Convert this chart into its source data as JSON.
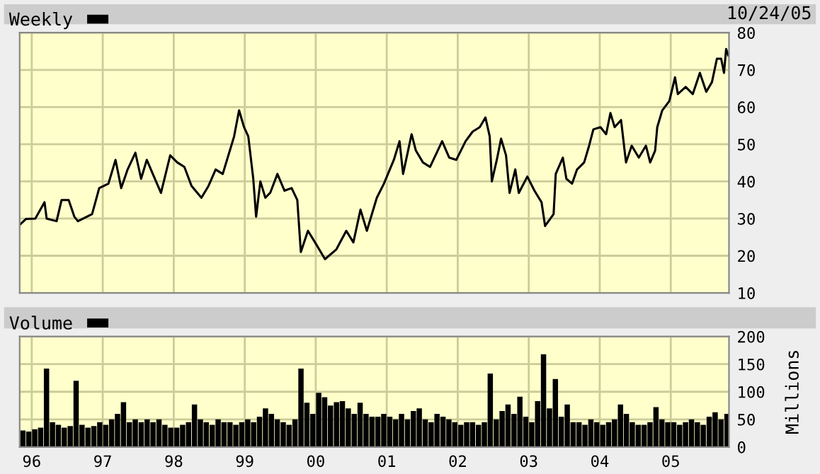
{
  "chart_data": [
    {
      "type": "line",
      "legend": "top left",
      "grid": true,
      "tick_labels": "y",
      "annotations": [
        "10/24/05"
      ],
      "xlim": [
        1995.83,
        2005.82
      ],
      "xticks": [
        {
          "value": 1996,
          "label": null
        },
        {
          "value": 1997,
          "label": null
        },
        {
          "value": 1998,
          "label": null
        },
        {
          "value": 1999,
          "label": null
        },
        {
          "value": 2000,
          "label": null
        },
        {
          "value": 2001,
          "label": null
        },
        {
          "value": 2002,
          "label": null
        },
        {
          "value": 2003,
          "label": null
        },
        {
          "value": 2004,
          "label": null
        },
        {
          "value": 2005,
          "label": null
        }
      ],
      "ylim": [
        10,
        80
      ],
      "yticks": [
        10,
        20,
        30,
        40,
        50,
        60,
        70,
        80
      ],
      "series": [
        {
          "name": "Weekly",
          "color": "#000000",
          "x": [
            1995.83,
            1995.92,
            1996.05,
            1996.18,
            1996.21,
            1996.35,
            1996.42,
            1996.52,
            1996.6,
            1996.65,
            1996.85,
            1996.95,
            1997.08,
            1997.18,
            1997.26,
            1997.35,
            1997.46,
            1997.54,
            1997.62,
            1997.75,
            1997.82,
            1997.95,
            1998.05,
            1998.15,
            1998.25,
            1998.39,
            1998.49,
            1998.59,
            1998.69,
            1998.79,
            1998.85,
            1998.92,
            1998.99,
            1999.05,
            1999.12,
            1999.16,
            1999.22,
            1999.29,
            1999.36,
            1999.46,
            1999.56,
            1999.66,
            1999.74,
            1999.79,
            1999.89,
            1999.99,
            2000.13,
            2000.29,
            2000.43,
            2000.53,
            2000.63,
            2000.72,
            2000.86,
            2000.96,
            2001.1,
            2001.18,
            2001.23,
            2001.35,
            2001.41,
            2001.51,
            2001.61,
            2001.78,
            2001.88,
            2001.98,
            2002.11,
            2002.21,
            2002.31,
            2002.39,
            2002.45,
            2002.48,
            2002.55,
            2002.61,
            2002.68,
            2002.73,
            2002.81,
            2002.86,
            2002.98,
            2003.08,
            2003.18,
            2003.23,
            2003.35,
            2003.38,
            2003.48,
            2003.53,
            2003.61,
            2003.68,
            2003.78,
            2003.85,
            2003.91,
            2004.01,
            2004.09,
            2004.15,
            2004.21,
            2004.3,
            2004.35,
            2004.37,
            2004.45,
            2004.55,
            2004.65,
            2004.71,
            2004.78,
            2004.81,
            2004.88,
            2004.98,
            2005.06,
            2005.1,
            2005.21,
            2005.31,
            2005.41,
            2005.5,
            2005.58,
            2005.65,
            2005.71,
            2005.75,
            2005.78,
            2005.81
          ],
          "values": [
            28.3,
            29.9,
            30,
            34.4,
            30,
            29.3,
            35,
            35,
            30.5,
            29.3,
            31.2,
            38.2,
            39.4,
            45.8,
            38.2,
            43.2,
            47.7,
            40.7,
            45.8,
            40,
            36.9,
            47,
            45.1,
            43.9,
            38.8,
            35.6,
            38.8,
            43.2,
            42,
            48.3,
            52.1,
            59.1,
            54.6,
            52.1,
            40.7,
            30.5,
            40,
            35.6,
            37,
            42,
            37.5,
            38.2,
            35,
            21,
            26.7,
            23.6,
            19.1,
            21.7,
            26.7,
            23.6,
            32.4,
            26.7,
            35.6,
            39.4,
            45.8,
            50.8,
            42,
            52.7,
            48.3,
            45.1,
            43.9,
            50.8,
            46.4,
            45.8,
            50.8,
            53.4,
            54.6,
            57.2,
            52.1,
            40,
            45.8,
            51.5,
            47,
            36.9,
            43.2,
            36.9,
            41.3,
            37.5,
            34.4,
            28,
            31.2,
            42,
            46.4,
            40.7,
            39.4,
            43.2,
            45.1,
            49.6,
            54,
            54.6,
            52.7,
            58.4,
            54.6,
            56.5,
            48.3,
            45.1,
            49.6,
            46.4,
            49.6,
            45.1,
            48.3,
            54.6,
            59.1,
            61.6,
            68,
            63.5,
            65.4,
            63.5,
            69.2,
            64.1,
            66.7,
            73,
            73,
            69.2,
            75.6,
            73.9
          ]
        }
      ]
    },
    {
      "type": "bar",
      "legend": "top left",
      "grid": true,
      "ylabel": "Millions",
      "xlim": [
        1995.83,
        2005.82
      ],
      "xticks": [
        {
          "value": 1996,
          "label": "96"
        },
        {
          "value": 1997,
          "label": "97"
        },
        {
          "value": 1998,
          "label": "98"
        },
        {
          "value": 1999,
          "label": "99"
        },
        {
          "value": 2000,
          "label": "00"
        },
        {
          "value": 2001,
          "label": "01"
        },
        {
          "value": 2002,
          "label": "02"
        },
        {
          "value": 2003,
          "label": "03"
        },
        {
          "value": 2004,
          "label": "04"
        },
        {
          "value": 2005,
          "label": "05"
        }
      ],
      "ylim": [
        0,
        200
      ],
      "yticks": [
        0,
        50,
        100,
        150,
        200
      ],
      "series": [
        {
          "name": "Volume",
          "color": "#000000",
          "x": [
            1995.875,
            1995.958,
            1996.042,
            1996.125,
            1996.208,
            1996.292,
            1996.375,
            1996.458,
            1996.542,
            1996.625,
            1996.708,
            1996.792,
            1996.875,
            1996.958,
            1997.042,
            1997.125,
            1997.208,
            1997.292,
            1997.375,
            1997.458,
            1997.542,
            1997.625,
            1997.708,
            1997.792,
            1997.875,
            1997.958,
            1998.042,
            1998.125,
            1998.208,
            1998.292,
            1998.375,
            1998.458,
            1998.542,
            1998.625,
            1998.708,
            1998.792,
            1998.875,
            1998.958,
            1999.042,
            1999.125,
            1999.208,
            1999.292,
            1999.375,
            1999.458,
            1999.542,
            1999.625,
            1999.708,
            1999.792,
            1999.875,
            1999.958,
            2000.042,
            2000.125,
            2000.208,
            2000.292,
            2000.375,
            2000.458,
            2000.542,
            2000.625,
            2000.708,
            2000.792,
            2000.875,
            2000.958,
            2001.042,
            2001.125,
            2001.208,
            2001.292,
            2001.375,
            2001.458,
            2001.542,
            2001.625,
            2001.708,
            2001.792,
            2001.875,
            2001.958,
            2002.042,
            2002.125,
            2002.208,
            2002.292,
            2002.375,
            2002.458,
            2002.542,
            2002.625,
            2002.708,
            2002.792,
            2002.875,
            2002.958,
            2003.042,
            2003.125,
            2003.208,
            2003.292,
            2003.375,
            2003.458,
            2003.542,
            2003.625,
            2003.708,
            2003.792,
            2003.875,
            2003.958,
            2004.042,
            2004.125,
            2004.208,
            2004.292,
            2004.375,
            2004.458,
            2004.542,
            2004.625,
            2004.708,
            2004.792,
            2004.875,
            2004.958,
            2005.042,
            2005.125,
            2005.208,
            2005.292,
            2005.375,
            2005.458,
            2005.542,
            2005.625,
            2005.708,
            2005.792
          ],
          "values": [
            30,
            28,
            32,
            35,
            142,
            45,
            40,
            35,
            38,
            120,
            40,
            35,
            38,
            45,
            40,
            50,
            60,
            81,
            45,
            50,
            45,
            50,
            45,
            50,
            40,
            35,
            35,
            40,
            45,
            77,
            50,
            45,
            40,
            50,
            45,
            45,
            40,
            45,
            50,
            45,
            55,
            70,
            60,
            50,
            45,
            40,
            50,
            142,
            80,
            60,
            98,
            90,
            75,
            81,
            83,
            70,
            60,
            80,
            60,
            55,
            55,
            60,
            55,
            50,
            60,
            50,
            65,
            70,
            50,
            45,
            60,
            55,
            50,
            45,
            40,
            45,
            45,
            40,
            45,
            133,
            50,
            65,
            77,
            60,
            91,
            55,
            45,
            83,
            168,
            70,
            123,
            55,
            77,
            45,
            45,
            40,
            50,
            45,
            40,
            45,
            50,
            77,
            60,
            45,
            40,
            40,
            45,
            72,
            50,
            45,
            45,
            40,
            45,
            50,
            45,
            40,
            55,
            63,
            50,
            60
          ]
        }
      ]
    }
  ]
}
